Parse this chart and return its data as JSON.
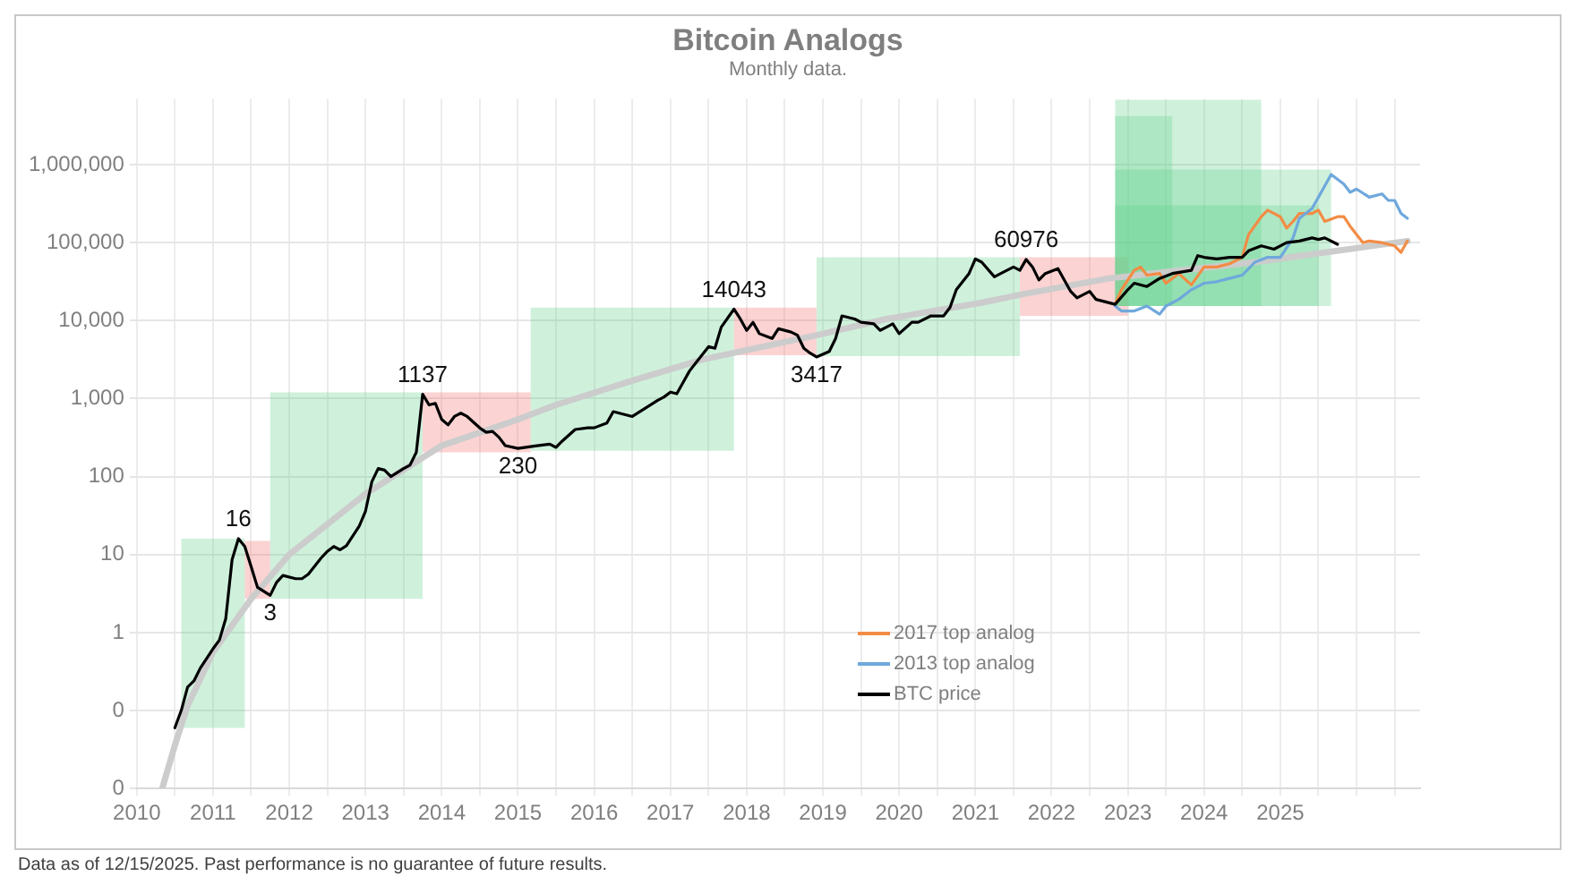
{
  "chart_data": {
    "type": "line",
    "title": "Bitcoin Analogs",
    "subtitle": "Monthly data.",
    "log": true,
    "grid": true,
    "legend": "bottom right",
    "marker": "none",
    "line_style": "solid",
    "xlim": [
      "2010-01",
      "2026-11"
    ],
    "xticks": [
      {
        "value": "2010",
        "label": "2010"
      },
      {
        "value": "2010-07",
        "label": null
      },
      {
        "value": "2011",
        "label": "2011"
      },
      {
        "value": "2011-07",
        "label": null
      },
      {
        "value": "2012",
        "label": "2012"
      },
      {
        "value": "2012-07",
        "label": null
      },
      {
        "value": "2013",
        "label": "2013"
      },
      {
        "value": "2013-07",
        "label": null
      },
      {
        "value": "2014",
        "label": "2014"
      },
      {
        "value": "2014-07",
        "label": null
      },
      {
        "value": "2015",
        "label": "2015"
      },
      {
        "value": "2015-07",
        "label": null
      },
      {
        "value": "2016",
        "label": "2016"
      },
      {
        "value": "2016-07",
        "label": null
      },
      {
        "value": "2017",
        "label": "2017"
      },
      {
        "value": "2017-07",
        "label": null
      },
      {
        "value": "2018",
        "label": "2018"
      },
      {
        "value": "2018-07",
        "label": null
      },
      {
        "value": "2019",
        "label": "2019"
      },
      {
        "value": "2019-07",
        "label": null
      },
      {
        "value": "2020",
        "label": "2020"
      },
      {
        "value": "2020-07",
        "label": null
      },
      {
        "value": "2021",
        "label": "2021"
      },
      {
        "value": "2021-07",
        "label": null
      },
      {
        "value": "2022",
        "label": "2022"
      },
      {
        "value": "2022-07",
        "label": null
      },
      {
        "value": "2023",
        "label": "2023"
      },
      {
        "value": "2023-07",
        "label": null
      },
      {
        "value": "2024",
        "label": "2024"
      },
      {
        "value": "2024-07",
        "label": null
      },
      {
        "value": "2025",
        "label": "2025"
      },
      {
        "value": "2025-07",
        "label": null
      },
      {
        "value": "2026",
        "label": null
      },
      {
        "value": "2026-07",
        "label": null
      }
    ],
    "ylim": [
      0.01,
      7000000
    ],
    "yticks": [
      {
        "value": 0.01,
        "label": "0"
      },
      {
        "value": 0.1,
        "label": "0"
      },
      {
        "value": 1,
        "label": "1"
      },
      {
        "value": 10,
        "label": "10"
      },
      {
        "value": 100,
        "label": "100"
      },
      {
        "value": 1000,
        "label": "1,000"
      },
      {
        "value": 10000,
        "label": "10,000"
      },
      {
        "value": 100000,
        "label": "100,000"
      },
      {
        "value": 1000000,
        "label": "1,000,000"
      }
    ],
    "series": [
      {
        "type": "area",
        "color": "#5fd08a",
        "x": [
          "2010-08",
          "2010-08",
          "2011-06",
          "2011-06"
        ],
        "values": [
          0.06,
          16,
          16,
          0.06
        ]
      },
      {
        "type": "area",
        "color": "#f26d6d",
        "x": [
          "2011-06",
          "2011-06",
          "2011-10",
          "2011-10"
        ],
        "values": [
          2.7,
          15,
          15,
          2.7
        ]
      },
      {
        "type": "area",
        "color": "#5fd08a",
        "x": [
          "2011-10",
          "2011-10",
          "2013-10",
          "2013-10"
        ],
        "values": [
          2.7,
          1200,
          1200,
          2.7
        ]
      },
      {
        "type": "area",
        "color": "#f26d6d",
        "x": [
          "2013-10",
          "2013-10",
          "2015-03",
          "2015-03"
        ],
        "values": [
          205,
          1200,
          1200,
          205
        ]
      },
      {
        "type": "area",
        "color": "#5fd08a",
        "x": [
          "2015-03",
          "2015-03",
          "2017-11",
          "2017-11"
        ],
        "values": [
          215,
          14700,
          14700,
          215
        ]
      },
      {
        "type": "area",
        "color": "#f26d6d",
        "x": [
          "2017-11",
          "2017-11",
          "2018-12",
          "2018-12"
        ],
        "values": [
          3600,
          14700,
          14700,
          3600
        ]
      },
      {
        "type": "area",
        "color": "#5fd08a",
        "x": [
          "2018-12",
          "2018-12",
          "2021-08",
          "2021-08"
        ],
        "values": [
          3500,
          65000,
          65000,
          3500
        ]
      },
      {
        "type": "area",
        "color": "#f26d6d",
        "x": [
          "2021-08",
          "2021-08",
          "2023-01",
          "2023-01"
        ],
        "values": [
          11500,
          65000,
          65000,
          11500
        ]
      },
      {
        "type": "area",
        "color": "#5fd08a",
        "x": [
          "2022-11",
          "2022-11",
          "2024-10",
          "2024-10"
        ],
        "values": [
          15400,
          6800000,
          6800000,
          15400
        ]
      },
      {
        "type": "area",
        "color": "#5fd08a",
        "x": [
          "2022-11",
          "2022-11",
          "2023-08",
          "2023-08"
        ],
        "values": [
          15400,
          4200000,
          4200000,
          15400
        ]
      },
      {
        "type": "area",
        "color": "#5fd08a",
        "x": [
          "2022-11",
          "2022-11",
          "2025-09",
          "2025-09"
        ],
        "values": [
          15400,
          866000,
          866000,
          15400
        ]
      },
      {
        "type": "area",
        "color": "#5fd08a",
        "x": [
          "2022-11",
          "2022-11",
          "2025-07",
          "2025-07"
        ],
        "values": [
          15400,
          301000,
          301000,
          15400
        ]
      },
      {
        "type": "line",
        "color": "#cccccc",
        "x": [
          "2010-05",
          "2010-07",
          "2010-09",
          "2011-01",
          "2011-07",
          "2012-01",
          "2013-01",
          "2014-01",
          "2015-01",
          "2015-07",
          "2016-07",
          "2017-06",
          "2018-12",
          "2019-11",
          "2021-02",
          "2021-08",
          "2022-10",
          "2024-09",
          "2026-09"
        ],
        "values": [
          0.01,
          0.036,
          0.115,
          0.56,
          2.7,
          10,
          60,
          250,
          540,
          830,
          1700,
          3160,
          6490,
          10500,
          17000,
          21500,
          34800,
          56200,
          105000
        ]
      },
      {
        "name": "2017 top analog",
        "color": "#f28c45",
        "x": [
          "2022-11",
          "2022-12",
          "2023-02",
          "2023-03",
          "2023-04",
          "2023-06",
          "2023-07",
          "2023-09",
          "2023-11",
          "2024-01",
          "2024-03",
          "2024-05",
          "2024-07",
          "2024-08",
          "2024-10",
          "2024-11",
          "2025-01",
          "2025-02",
          "2025-03",
          "2025-04",
          "2025-06",
          "2025-07",
          "2025-08",
          "2025-10",
          "2025-11",
          "2025-12",
          "2026-02",
          "2026-03",
          "2026-05",
          "2026-07",
          "2026-08",
          "2026-09"
        ],
        "values": [
          16200,
          24900,
          44200,
          48700,
          38300,
          40200,
          30200,
          40200,
          28700,
          48700,
          48700,
          53600,
          64900,
          127000,
          215000,
          261000,
          215000,
          154000,
          187000,
          237000,
          237000,
          261000,
          187000,
          215000,
          215000,
          162000,
          100000,
          105000,
          100000,
          90900,
          75000,
          105000
        ]
      },
      {
        "name": "2013 top analog",
        "color": "#6fa8dc",
        "x": [
          "2022-11",
          "2022-12",
          "2023-02",
          "2023-04",
          "2023-06",
          "2023-07",
          "2023-09",
          "2023-11",
          "2024-01",
          "2024-03",
          "2024-05",
          "2024-07",
          "2024-09",
          "2024-11",
          "2025-01",
          "2025-03",
          "2025-04",
          "2025-06",
          "2025-07",
          "2025-09",
          "2025-11",
          "2025-12",
          "2026-01",
          "2026-03",
          "2026-05",
          "2026-06",
          "2026-07",
          "2026-08",
          "2026-09"
        ],
        "values": [
          15400,
          13300,
          13300,
          15400,
          12100,
          15400,
          18700,
          24900,
          30200,
          31600,
          34800,
          38300,
          56200,
          64900,
          64900,
          115000,
          205000,
          274000,
          383000,
          750000,
          562000,
          442000,
          487000,
          383000,
          422000,
          348000,
          348000,
          237000,
          205000
        ]
      },
      {
        "name": "BTC price",
        "color": "#000000",
        "x": [
          "2010-07",
          "2010-08",
          "2010-09",
          "2010-10",
          "2010-11",
          "2011-01",
          "2011-02",
          "2011-03",
          "2011-04",
          "2011-05",
          "2011-06",
          "2011-07",
          "2011-08",
          "2011-10",
          "2011-11",
          "2011-12",
          "2012-02",
          "2012-03",
          "2012-04",
          "2012-06",
          "2012-07",
          "2012-08",
          "2012-09",
          "2012-10",
          "2012-12",
          "2013-01",
          "2013-02",
          "2013-03",
          "2013-04",
          "2013-05",
          "2013-07",
          "2013-08",
          "2013-09",
          "2013-10",
          "2013-11",
          "2013-12",
          "2014-01",
          "2014-02",
          "2014-03",
          "2014-04",
          "2014-05",
          "2014-07",
          "2014-08",
          "2014-09",
          "2014-10",
          "2014-11",
          "2015-01",
          "2015-04",
          "2015-06",
          "2015-07",
          "2015-08",
          "2015-10",
          "2015-12",
          "2016-01",
          "2016-03",
          "2016-04",
          "2016-07",
          "2016-09",
          "2016-11",
          "2016-12",
          "2017-01",
          "2017-02",
          "2017-04",
          "2017-05",
          "2017-07",
          "2017-08",
          "2017-09",
          "2017-11",
          "2017-12",
          "2018-01",
          "2018-02",
          "2018-03",
          "2018-05",
          "2018-06",
          "2018-08",
          "2018-09",
          "2018-10",
          "2018-11",
          "2018-12",
          "2019-02",
          "2019-03",
          "2019-04",
          "2019-06",
          "2019-07",
          "2019-09",
          "2019-10",
          "2019-11",
          "2019-12",
          "2020-01",
          "2020-03",
          "2020-04",
          "2020-06",
          "2020-08",
          "2020-09",
          "2020-10",
          "2020-12",
          "2021-01",
          "2021-02",
          "2021-04",
          "2021-05",
          "2021-07",
          "2021-08",
          "2021-09",
          "2021-10",
          "2021-11",
          "2021-12",
          "2022-02",
          "2022-03",
          "2022-04",
          "2022-05",
          "2022-07",
          "2022-08",
          "2022-11",
          "2023-01",
          "2023-02",
          "2023-04",
          "2023-06",
          "2023-08",
          "2023-11",
          "2023-12",
          "2024-01",
          "2024-03",
          "2024-05",
          "2024-07",
          "2024-08",
          "2024-10",
          "2024-12",
          "2025-02",
          "2025-04",
          "2025-06",
          "2025-07",
          "2025-08",
          "2025-10"
        ],
        "values": [
          0.06,
          0.1,
          0.2,
          0.24,
          0.35,
          0.62,
          0.8,
          1.5,
          8.6,
          16,
          12.7,
          7,
          3.8,
          3,
          4.4,
          5.4,
          4.9,
          4.9,
          5.6,
          9,
          11,
          12.7,
          11.5,
          13,
          23,
          36,
          86,
          127,
          121,
          100,
          127,
          140,
          205,
          1137,
          830,
          870,
          540,
          460,
          590,
          650,
          590,
          420,
          370,
          380,
          320,
          250,
          230,
          249,
          261,
          237,
          287,
          402,
          422,
          422,
          487,
          681,
          590,
          750,
          953,
          1050,
          1212,
          1155,
          2260,
          2870,
          4640,
          4420,
          8250,
          14043,
          10500,
          7500,
          9530,
          6810,
          5900,
          7870,
          7140,
          6490,
          4420,
          3830,
          3417,
          4020,
          5900,
          11500,
          10500,
          9530,
          9090,
          7500,
          8250,
          9090,
          6810,
          9530,
          9530,
          11500,
          11500,
          14700,
          24900,
          40200,
          61900,
          56200,
          36500,
          40200,
          48700,
          44200,
          60976,
          48700,
          33200,
          40200,
          46400,
          33200,
          23700,
          19600,
          23700,
          18700,
          16200,
          24900,
          30200,
          27400,
          34800,
          40200,
          44200,
          68100,
          64900,
          61900,
          64900,
          64900,
          78600,
          90900,
          82500,
          100000,
          105000,
          115000,
          110000,
          115000,
          95300
        ]
      }
    ],
    "annotations": [
      {
        "text": "16",
        "x": "2011-05",
        "y": 16
      },
      {
        "text": "3",
        "x": "2011-10",
        "y": 3
      },
      {
        "text": "1137",
        "x": "2013-10",
        "y": 1137
      },
      {
        "text": "230",
        "x": "2015-01",
        "y": 230
      },
      {
        "text": "14043",
        "x": "2017-11",
        "y": 14043
      },
      {
        "text": "3417",
        "x": "2018-12",
        "y": 3417
      },
      {
        "text": "60976",
        "x": "2021-09",
        "y": 60976
      },
      "Data as of 12/15/2025. Past performance is no guarantee of future results."
    ]
  }
}
